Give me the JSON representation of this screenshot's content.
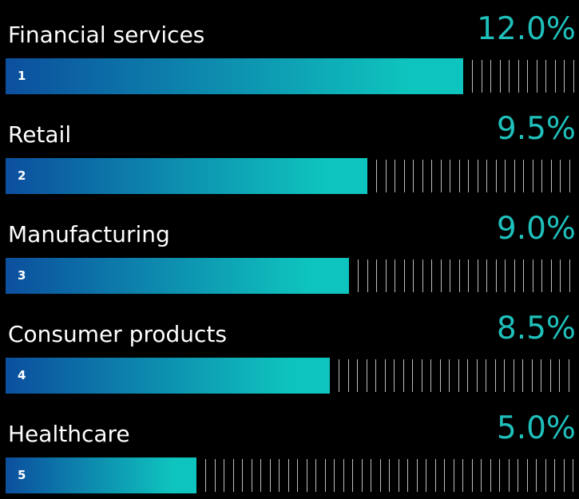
{
  "chart_data": {
    "type": "bar",
    "orientation": "horizontal",
    "categories": [
      "Financial services",
      "Retail",
      "Manufacturing",
      "Consumer products",
      "Healthcare"
    ],
    "ranks": [
      "1",
      "2",
      "3",
      "4",
      "5"
    ],
    "values": [
      12.0,
      9.5,
      9.0,
      8.5,
      5.0
    ],
    "value_labels": [
      "12.0%",
      "9.5%",
      "9.0%",
      "8.5%",
      "5.0%"
    ],
    "xlim": [
      0,
      15
    ],
    "grid": false,
    "legend": "none"
  },
  "colors": {
    "background": "#000000",
    "bar_start": "#0c4f9e",
    "bar_end": "#0ec4be",
    "value_text": "#1fc0bb",
    "label_text": "#ffffff",
    "tick": "#bdbdbd"
  }
}
